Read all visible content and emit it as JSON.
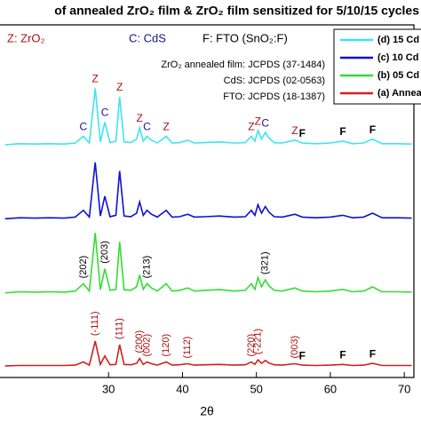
{
  "chart_data": {
    "type": "line",
    "title": "of annealed ZrO₂ film & ZrO₂ film sensitized for 5/10/15 cycles",
    "xlabel": "2θ",
    "xlim": [
      15.2,
      71.3
    ],
    "xticks": [
      30,
      40,
      50,
      60,
      70
    ],
    "ylim": [
      0,
      100
    ],
    "annotations": [
      "Z: ZrO₂",
      "C: CdS",
      "F: FTO (SnO₂:F)",
      "ZrO₂ annealed film: JCPDS (37-1484)",
      "CdS: JCPDS (02-0563)",
      "FTO: JCPDS (18-1387)"
    ],
    "legend_position": "upper right",
    "x": [
      16,
      18,
      20,
      22,
      24,
      25.5,
      26.6,
      27.4,
      28.2,
      28.9,
      29.5,
      30.2,
      31,
      31.5,
      32.1,
      33,
      33.8,
      34.2,
      34.7,
      35.2,
      35.8,
      36.6,
      37.8,
      38.6,
      39.6,
      40.7,
      41.6,
      43,
      45,
      47,
      48.5,
      49.3,
      49.8,
      50.2,
      50.7,
      51.2,
      51.7,
      52.4,
      53.5,
      55.2,
      56.2,
      58,
      60,
      61.7,
      63,
      64.5,
      65.7,
      67,
      69,
      71
    ],
    "series": [
      {
        "name": "(d) 15 Cd",
        "color": "#3fe3f2",
        "values": [
          66,
          66.3,
          66.2,
          66.3,
          66.2,
          66.5,
          68.4,
          66.5,
          82,
          66.8,
          72.4,
          66.6,
          67,
          79.6,
          66.8,
          66.6,
          67.6,
          70.8,
          67,
          68.4,
          67.3,
          66.5,
          68.4,
          66.5,
          66.6,
          67.3,
          66.5,
          66.6,
          66.8,
          66.5,
          66.6,
          68.4,
          67,
          70,
          67.6,
          69.5,
          67.9,
          66.6,
          66.5,
          67.3,
          66.5,
          66.3,
          66.5,
          67,
          66.3,
          66.5,
          67.6,
          66.3,
          66.3,
          66.2
        ],
        "peak_labels": [
          {
            "text": "C",
            "x": 26.6
          },
          {
            "text": "Z",
            "x": 28.2
          },
          {
            "text": "C",
            "x": 29.5
          },
          {
            "text": "Z",
            "x": 31.5
          },
          {
            "text": "Z",
            "x": 34.2
          },
          {
            "text": "C",
            "x": 35.2
          },
          {
            "text": "Z",
            "x": 37.8
          },
          {
            "text": "Z",
            "x": 49.3
          },
          {
            "text": "Z",
            "x": 50.2
          },
          {
            "text": "C",
            "x": 51.2
          },
          {
            "text": "Z",
            "x": 55.2
          },
          {
            "text": "F",
            "x": 56.2
          },
          {
            "text": "F",
            "x": 61.7
          },
          {
            "text": "F",
            "x": 65.7
          }
        ]
      },
      {
        "name": "(c) 10 Cd",
        "color": "#1010d0",
        "values": [
          45,
          45.3,
          45.2,
          45.3,
          45.2,
          45.5,
          47.4,
          45.5,
          61,
          45.8,
          51.4,
          45.6,
          46,
          58.6,
          45.8,
          45.6,
          46.6,
          49.8,
          46,
          47.4,
          46.3,
          45.5,
          47.4,
          45.5,
          45.6,
          46.3,
          45.5,
          45.6,
          45.8,
          45.5,
          45.6,
          47.4,
          46,
          49,
          46.6,
          48.5,
          46.9,
          45.6,
          45.5,
          46.3,
          45.5,
          45.3,
          45.5,
          46,
          45.3,
          45.5,
          46.6,
          45.3,
          45.3,
          45.2
        ]
      },
      {
        "name": "(b) 05 Cd",
        "color": "#33dd33",
        "values": [
          24,
          24.3,
          24.2,
          24.3,
          24.2,
          24.5,
          26.6,
          24.5,
          41,
          24.9,
          30.8,
          24.7,
          25,
          38.5,
          24.9,
          24.7,
          25.7,
          29.1,
          25,
          26.6,
          25.4,
          24.5,
          26.6,
          24.5,
          24.7,
          25.4,
          24.5,
          24.7,
          24.9,
          24.5,
          24.7,
          26.6,
          25,
          28.3,
          25.7,
          27.7,
          26,
          24.7,
          24.5,
          25.4,
          24.5,
          24.3,
          24.5,
          25,
          24.3,
          24.5,
          25.7,
          24.3,
          24.3,
          24.2
        ],
        "peak_labels": [
          {
            "text": "(202)",
            "x": 26.6
          },
          {
            "text": "(203)",
            "x": 29.5
          },
          {
            "text": "(213)",
            "x": 35.2
          },
          {
            "text": "(321)",
            "x": 51.2
          }
        ]
      },
      {
        "name": "(a) Annea",
        "color": "#cc2222",
        "values": [
          3.3,
          3.4,
          3.4,
          3.4,
          3.4,
          3.5,
          4.4,
          3.5,
          10.3,
          3.7,
          6.1,
          3.6,
          3.7,
          9.3,
          3.7,
          3.6,
          4,
          5.4,
          3.7,
          4.4,
          3.9,
          3.5,
          4.4,
          3.5,
          3.6,
          3.9,
          3.5,
          3.6,
          3.7,
          3.5,
          3.6,
          4.4,
          3.7,
          5,
          4,
          4.8,
          4.1,
          3.6,
          3.5,
          3.9,
          3.5,
          3.4,
          3.5,
          3.7,
          3.4,
          3.5,
          4,
          3.4,
          3.4,
          3.4
        ],
        "peak_labels": [
          {
            "text": "(-111)",
            "x": 28.2
          },
          {
            "text": "(111)",
            "x": 31.5
          },
          {
            "text": "(200)",
            "x": 34.2
          },
          {
            "text": "(002)",
            "x": 35.2
          },
          {
            "text": "(120)",
            "x": 37.8
          },
          {
            "text": "(112)",
            "x": 40.7
          },
          {
            "text": "(220)",
            "x": 49.3
          },
          {
            "text": "(-221)",
            "x": 50.2
          },
          {
            "text": "(003)",
            "x": 55.2
          },
          {
            "text": "F",
            "x": 56.2
          },
          {
            "text": "F",
            "x": 61.7
          },
          {
            "text": "F",
            "x": 65.7
          }
        ]
      }
    ]
  }
}
